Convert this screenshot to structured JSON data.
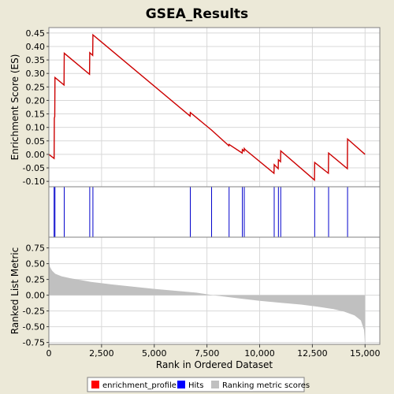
{
  "chart_data": [
    {
      "type": "line",
      "title": "GSEA_Results",
      "ylabel": "Enrichment Score (ES)",
      "ylim": [
        -0.12,
        0.47
      ],
      "yticks": [
        -0.1,
        -0.05,
        0.0,
        0.05,
        0.1,
        0.15,
        0.2,
        0.25,
        0.3,
        0.35,
        0.4,
        0.45
      ],
      "ytick_labels": [
        "-0.10",
        "-0.05",
        "0.00",
        "0.05",
        "0.10",
        "0.15",
        "0.20",
        "0.25",
        "0.30",
        "0.35",
        "0.40",
        "0.45"
      ],
      "series": [
        {
          "name": "enrichment_profile",
          "color": "#CC0000",
          "x": [
            0,
            250,
            260,
            280,
            290,
            720,
            730,
            1930,
            1940,
            2080,
            2090,
            6700,
            6710,
            7720,
            8540,
            8550,
            9170,
            9180,
            9260,
            9270,
            9310,
            10680,
            10690,
            10880,
            10890,
            10990,
            11000,
            12600,
            12610,
            13260,
            13270,
            14160,
            14170,
            15000
          ],
          "y": [
            0.0,
            -0.015,
            0.135,
            0.14,
            0.285,
            0.257,
            0.375,
            0.297,
            0.377,
            0.367,
            0.443,
            0.142,
            0.155,
            0.09,
            0.032,
            0.037,
            0.005,
            0.018,
            0.012,
            0.022,
            0.018,
            -0.07,
            -0.038,
            -0.053,
            -0.02,
            -0.027,
            0.013,
            -0.095,
            -0.03,
            -0.07,
            0.005,
            -0.053,
            0.057,
            0.0
          ]
        }
      ]
    },
    {
      "type": "scatter",
      "series": [
        {
          "name": "Hits",
          "color": "#0000CC",
          "x": [
            250,
            290,
            730,
            1940,
            2090,
            6710,
            7720,
            8550,
            9180,
            9270,
            10690,
            10890,
            11000,
            12610,
            13270,
            14170
          ]
        }
      ]
    },
    {
      "type": "area",
      "xlabel": "Rank in Ordered Dataset",
      "ylabel": "Ranked List Metric",
      "xlim": [
        0,
        15700
      ],
      "ylim": [
        -0.78,
        0.92
      ],
      "xticks": [
        0,
        2500,
        5000,
        7500,
        10000,
        12500,
        15000
      ],
      "xtick_labels": [
        "0",
        "2,500",
        "5,000",
        "7,500",
        "10,000",
        "12,500",
        "15,000"
      ],
      "yticks": [
        -0.75,
        -0.5,
        -0.25,
        0.0,
        0.25,
        0.5,
        0.75
      ],
      "ytick_labels": [
        "-0.75",
        "-0.50",
        "-0.25",
        "0.00",
        "0.25",
        "0.50",
        "0.75"
      ],
      "series": [
        {
          "name": "Ranking metric scores",
          "color": "#C0C0C0",
          "x": [
            0,
            50,
            150,
            300,
            600,
            1000,
            2000,
            3000,
            5000,
            7000,
            7800,
            9000,
            10000,
            11000,
            12000,
            12700,
            13500,
            14000,
            14500,
            14800,
            14950,
            15000
          ],
          "y": [
            0.55,
            0.45,
            0.39,
            0.34,
            0.3,
            0.27,
            0.21,
            0.17,
            0.1,
            0.04,
            0.0,
            -0.05,
            -0.09,
            -0.12,
            -0.15,
            -0.18,
            -0.22,
            -0.26,
            -0.32,
            -0.4,
            -0.55,
            -0.78
          ]
        }
      ]
    }
  ],
  "legend": {
    "placement": "bottom",
    "items": [
      {
        "label": "enrichment_profile",
        "color": "#FF0000"
      },
      {
        "label": "Hits",
        "color": "#0000FF"
      },
      {
        "label": "Ranking metric scores",
        "color": "#C0C0C0"
      }
    ]
  }
}
